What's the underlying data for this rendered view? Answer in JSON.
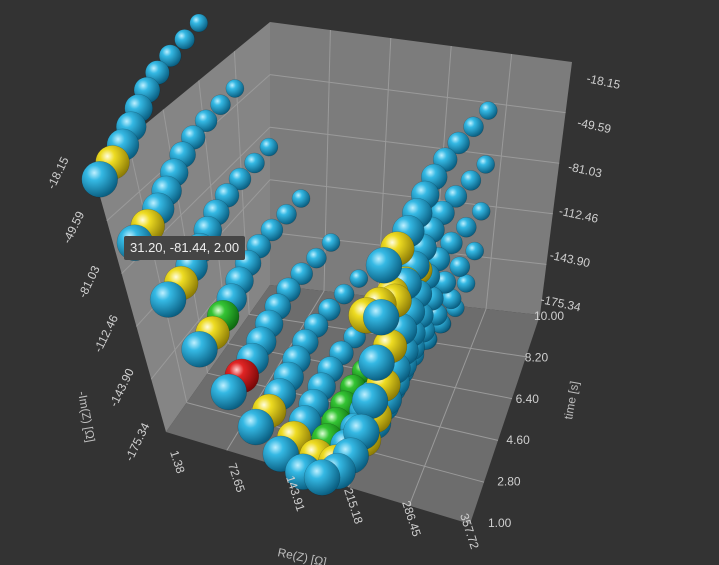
{
  "chart_data": {
    "type": "scatter",
    "subtype": "3d-bubble-surface",
    "background": "#333333",
    "axes": {
      "x": {
        "label": "Re(Z) [Ω]",
        "ticks": [
          "1.38",
          "72.65",
          "143.91",
          "215.18",
          "286.45",
          "357.72"
        ],
        "range": [
          1.38,
          357.72
        ]
      },
      "y": {
        "label": "-Im(Z) [Ω]",
        "ticks": [
          "-18.15",
          "-49.59",
          "-81.03",
          "-112.46",
          "-143.90",
          "-175.34"
        ],
        "range": [
          -175.34,
          -18.15
        ]
      },
      "z": {
        "label": "time [s]",
        "ticks": [
          "1.00",
          "2.80",
          "4.60",
          "6.40",
          "8.20",
          "10.00"
        ],
        "range": [
          1.0,
          10.0
        ]
      }
    },
    "grid": true,
    "series_colors": {
      "default": "#1aa3d2",
      "highlight_curve": "#e6d21a",
      "minimum_marker": "#2dbb2d",
      "selected_point": "#d01c1c"
    },
    "selected_point": {
      "x": 31.2,
      "y": -81.44,
      "z": 2.0
    },
    "tooltip": "31.20, -81.44, 2.00"
  }
}
